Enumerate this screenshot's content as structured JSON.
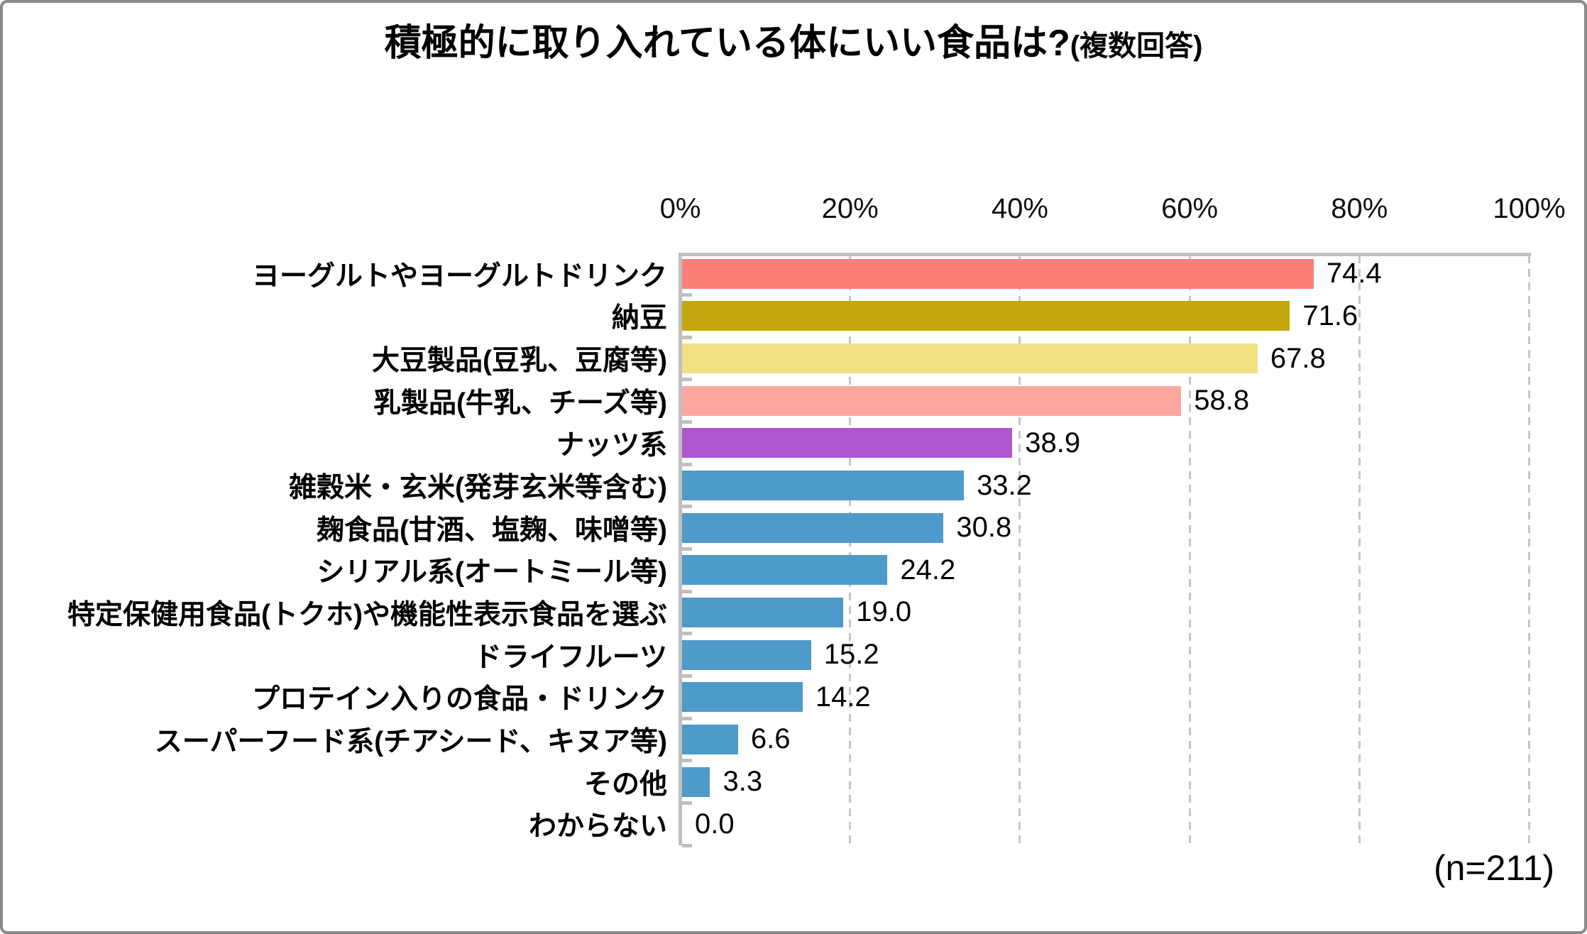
{
  "chart_data": {
    "type": "bar",
    "orientation": "horizontal",
    "title": "積極的に取り入れている体にいい食品は?",
    "title_suffix": "(複数回答)",
    "note": "(n=211)",
    "x_axis": {
      "position": "top",
      "min": 0,
      "max": 100,
      "tick_labels": [
        "0%",
        "20%",
        "40%",
        "60%",
        "80%",
        "100%"
      ],
      "tick_values": [
        0,
        20,
        40,
        60,
        80,
        100
      ],
      "gridlines": "dashed-vertical"
    },
    "categories": [
      "ヨーグルトやヨーグルトドリンク",
      "納豆",
      "大豆製品(豆乳、豆腐等)",
      "乳製品(牛乳、チーズ等)",
      "ナッツ系",
      "雑穀米・玄米(発芽玄米等含む)",
      "麹食品(甘酒、塩麹、味噌等)",
      "シリアル系(オートミール等)",
      "特定保健用食品(トクホ)や機能性表示食品を選ぶ",
      "ドライフルーツ",
      "プロテイン入りの食品・ドリンク",
      "スーパーフード系(チアシード、キヌア等)",
      "その他",
      "わからない"
    ],
    "values": [
      74.4,
      71.6,
      67.8,
      58.8,
      38.9,
      33.2,
      30.8,
      24.2,
      19.0,
      15.2,
      14.2,
      6.6,
      3.3,
      0.0
    ],
    "value_labels": [
      "74.4",
      "71.6",
      "67.8",
      "58.8",
      "38.9",
      "33.2",
      "30.8",
      "24.2",
      "19.0",
      "15.2",
      "14.2",
      "6.6",
      "3.3",
      "0.0"
    ],
    "bar_colors": [
      "#FB7F78",
      "#C3A70E",
      "#F2E183",
      "#FBA7A0",
      "#AE57D1",
      "#4D9ACB",
      "#4D9ACB",
      "#4D9ACB",
      "#4D9ACB",
      "#4D9ACB",
      "#4D9ACB",
      "#4D9ACB",
      "#4D9ACB",
      "#4D9ACB"
    ],
    "colors": {
      "axis": "#BFBFBF",
      "gridline": "#C6C6C6",
      "text": "#000000",
      "frame_border": "#8A8A8A",
      "background": "#FFFFFF"
    }
  }
}
